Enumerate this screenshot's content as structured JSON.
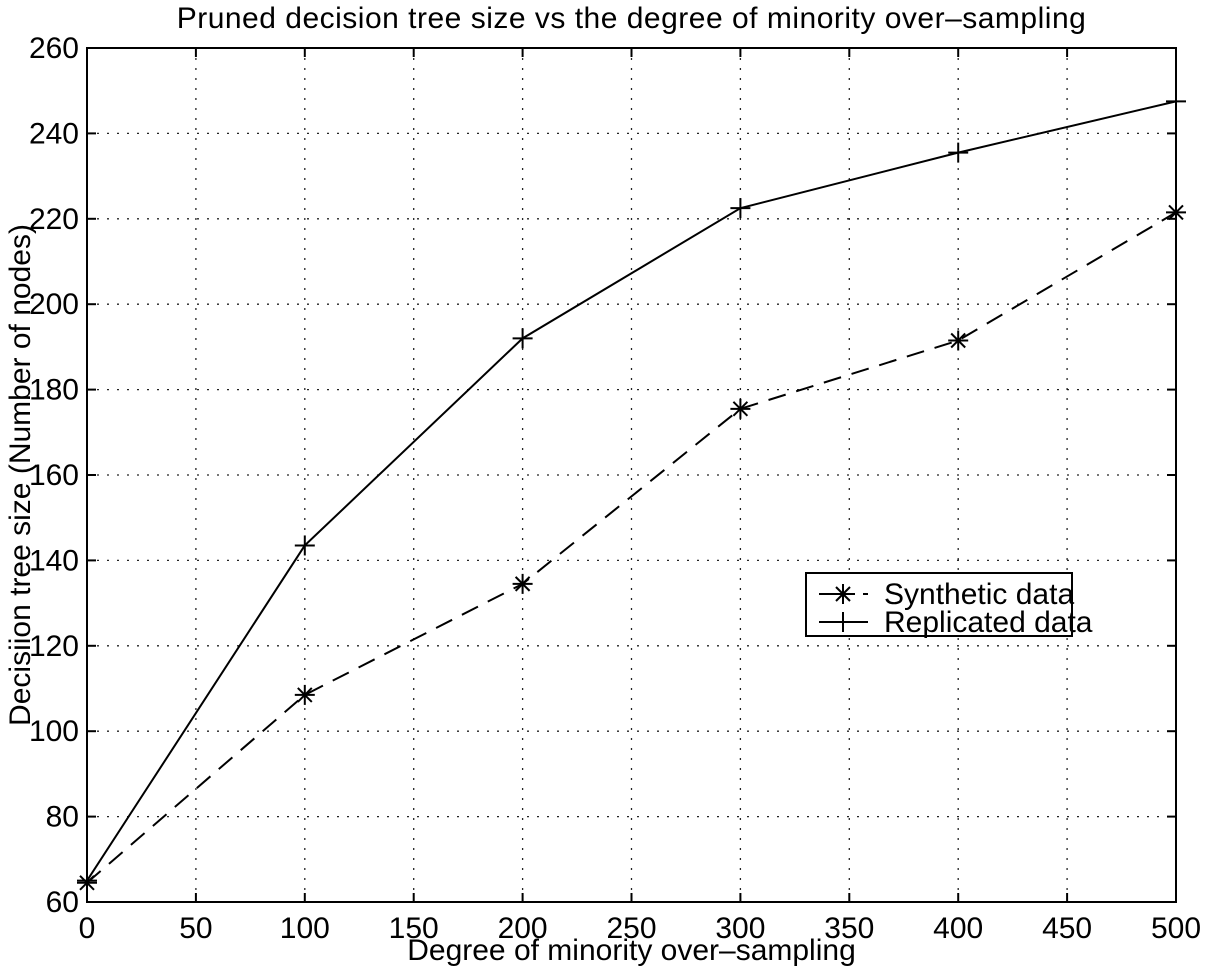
{
  "chart_data": {
    "type": "line",
    "title": "Pruned decision tree size vs the degree of minority over–sampling",
    "xlabel": "Degree of minority over–sampling",
    "ylabel": "Decisiion tree size (Number of nodes)",
    "xlim": [
      0,
      500
    ],
    "ylim": [
      60,
      260
    ],
    "xticks": [
      0,
      50,
      100,
      150,
      200,
      250,
      300,
      350,
      400,
      450,
      500
    ],
    "yticks": [
      60,
      80,
      100,
      120,
      140,
      160,
      180,
      200,
      220,
      240,
      260
    ],
    "grid": true,
    "grid_style": "dotted",
    "background_color": "#ffffff",
    "axis_color": "#000000",
    "x": [
      0,
      100,
      200,
      300,
      400,
      500
    ],
    "series": [
      {
        "name": "Synthetic data",
        "values": [
          64.5,
          108.5,
          134.5,
          175.5,
          191.5,
          221.5
        ],
        "line_style": "dashed",
        "marker": "asterisk",
        "color": "#000000"
      },
      {
        "name": "Replicated data",
        "values": [
          65,
          143.5,
          192,
          222.5,
          235.5,
          247.5
        ],
        "line_style": "solid",
        "marker": "plus",
        "color": "#000000"
      }
    ],
    "legend": {
      "position": "inside-right",
      "entries": [
        "Synthetic data",
        "Replicated data"
      ]
    }
  }
}
